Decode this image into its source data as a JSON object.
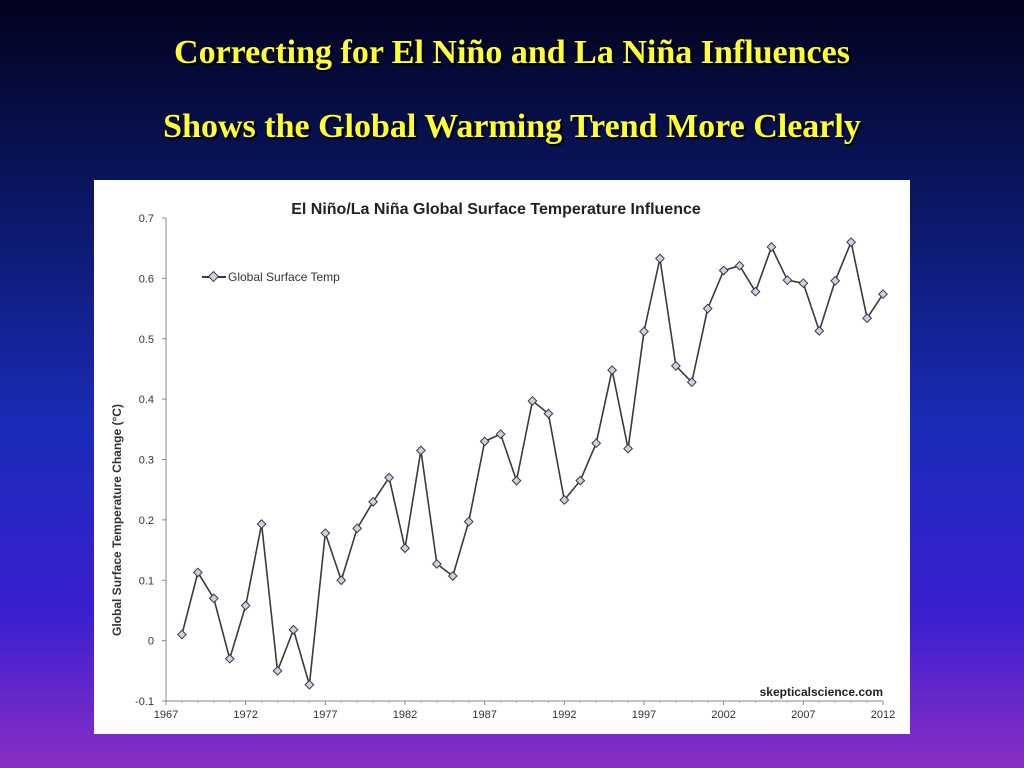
{
  "slide": {
    "title_line1": "Correcting for El Niño and La Niña Influences",
    "title_line2": "Shows the Global Warming Trend More Clearly",
    "background_colors": [
      "#02021e",
      "#1a2bb8",
      "#8a2ec4"
    ],
    "title_color": "#ffff33"
  },
  "chart_data": {
    "type": "line",
    "title": "El Niño/La Niña Global Surface Temperature Influence",
    "xlabel": "",
    "ylabel": "Global Surface Temperature Change (°C)",
    "xlim": [
      1967,
      2012
    ],
    "ylim": [
      -0.1,
      0.7
    ],
    "x_ticks": [
      1967,
      1972,
      1977,
      1982,
      1987,
      1992,
      1997,
      2002,
      2007,
      2012
    ],
    "y_ticks": [
      "-0.1",
      "0",
      "0.1",
      "0.2",
      "0.3",
      "0.4",
      "0.5",
      "0.6",
      "0.7"
    ],
    "legend": {
      "position": "top-left",
      "entries": [
        "Global Surface Temp"
      ]
    },
    "grid": false,
    "watermark": "skepticalscience.com",
    "series": [
      {
        "name": "Global Surface Temp",
        "color": "#3a3a3a",
        "x": [
          1968,
          1969,
          1970,
          1971,
          1972,
          1973,
          1974,
          1975,
          1976,
          1977,
          1978,
          1979,
          1980,
          1981,
          1982,
          1983,
          1984,
          1985,
          1986,
          1987,
          1988,
          1989,
          1990,
          1991,
          1992,
          1993,
          1994,
          1995,
          1996,
          1997,
          1998,
          1999,
          2000,
          2001,
          2002,
          2003,
          2004,
          2005,
          2006,
          2007,
          2008,
          2009,
          2010,
          2011,
          2012
        ],
        "values": [
          0.01,
          0.113,
          0.07,
          -0.03,
          0.058,
          0.193,
          -0.05,
          0.018,
          -0.073,
          0.178,
          0.1,
          0.186,
          0.23,
          0.27,
          0.153,
          0.315,
          0.127,
          0.107,
          0.197,
          0.33,
          0.342,
          0.265,
          0.397,
          0.376,
          0.233,
          0.265,
          0.327,
          0.448,
          0.318,
          0.512,
          0.633,
          0.455,
          0.428,
          0.55,
          0.613,
          0.621,
          0.578,
          0.652,
          0.597,
          0.592,
          0.513,
          0.596,
          0.66,
          0.534,
          0.574
        ]
      }
    ]
  }
}
